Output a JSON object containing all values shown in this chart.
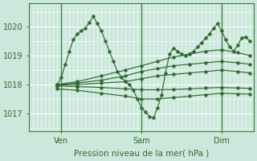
{
  "bg_color": "#cce8dc",
  "grid_color": "#ffffff",
  "line_color": "#2d6a2d",
  "xlabel": "Pression niveau de la mer( hPa )",
  "xlim": [
    0,
    56
  ],
  "ylim": [
    1016.4,
    1020.8
  ],
  "yticks": [
    1017,
    1018,
    1019,
    1020
  ],
  "xtick_positions": [
    8,
    28,
    48
  ],
  "xtick_labels": [
    "Ven",
    "Sam",
    "Dim"
  ],
  "vline_positions": [
    8,
    28,
    48
  ],
  "series": [
    {
      "x": [
        7,
        8,
        9,
        10,
        11,
        12,
        13,
        14,
        15,
        16,
        17,
        18,
        19,
        20,
        21,
        22,
        23,
        24,
        25,
        26,
        27,
        28,
        29,
        30,
        31,
        32,
        33,
        34,
        35,
        36,
        37,
        38,
        39,
        40,
        41,
        42,
        43,
        44,
        45,
        46,
        47,
        48,
        49,
        50,
        51,
        52,
        53,
        54,
        55
      ],
      "y": [
        1018.0,
        1018.25,
        1018.7,
        1019.15,
        1019.55,
        1019.75,
        1019.85,
        1019.95,
        1020.15,
        1020.35,
        1020.1,
        1019.85,
        1019.5,
        1019.15,
        1018.8,
        1018.45,
        1018.25,
        1018.1,
        1018.0,
        1017.8,
        1017.5,
        1017.2,
        1017.05,
        1016.9,
        1016.85,
        1017.2,
        1017.65,
        1018.4,
        1019.05,
        1019.25,
        1019.15,
        1019.05,
        1019.0,
        1019.05,
        1019.15,
        1019.3,
        1019.45,
        1019.6,
        1019.75,
        1019.95,
        1020.1,
        1019.85,
        1019.55,
        1019.3,
        1019.15,
        1019.35,
        1019.6,
        1019.65,
        1019.5
      ]
    },
    {
      "x": [
        7,
        12,
        18,
        24,
        28,
        32,
        36,
        40,
        44,
        48,
        52,
        55
      ],
      "y": [
        1018.0,
        1018.1,
        1018.3,
        1018.5,
        1018.65,
        1018.8,
        1018.95,
        1019.05,
        1019.15,
        1019.2,
        1019.1,
        1019.0
      ]
    },
    {
      "x": [
        7,
        12,
        18,
        24,
        28,
        32,
        36,
        40,
        44,
        48,
        52,
        55
      ],
      "y": [
        1018.0,
        1018.05,
        1018.15,
        1018.3,
        1018.45,
        1018.55,
        1018.65,
        1018.7,
        1018.75,
        1018.8,
        1018.75,
        1018.7
      ]
    },
    {
      "x": [
        7,
        12,
        18,
        24,
        28,
        32,
        36,
        40,
        44,
        48,
        52,
        55
      ],
      "y": [
        1017.98,
        1018.0,
        1018.05,
        1018.1,
        1018.2,
        1018.3,
        1018.35,
        1018.4,
        1018.45,
        1018.5,
        1018.45,
        1018.4
      ]
    },
    {
      "x": [
        7,
        12,
        18,
        24,
        28,
        32,
        36,
        40,
        44,
        48,
        52,
        55
      ],
      "y": [
        1017.95,
        1017.93,
        1017.9,
        1017.85,
        1017.82,
        1017.82,
        1017.83,
        1017.85,
        1017.88,
        1017.9,
        1017.88,
        1017.87
      ]
    },
    {
      "x": [
        7,
        12,
        18,
        24,
        28,
        32,
        36,
        40,
        44,
        48,
        52,
        55
      ],
      "y": [
        1017.85,
        1017.8,
        1017.7,
        1017.6,
        1017.5,
        1017.5,
        1017.55,
        1017.6,
        1017.65,
        1017.7,
        1017.68,
        1017.67
      ]
    }
  ]
}
